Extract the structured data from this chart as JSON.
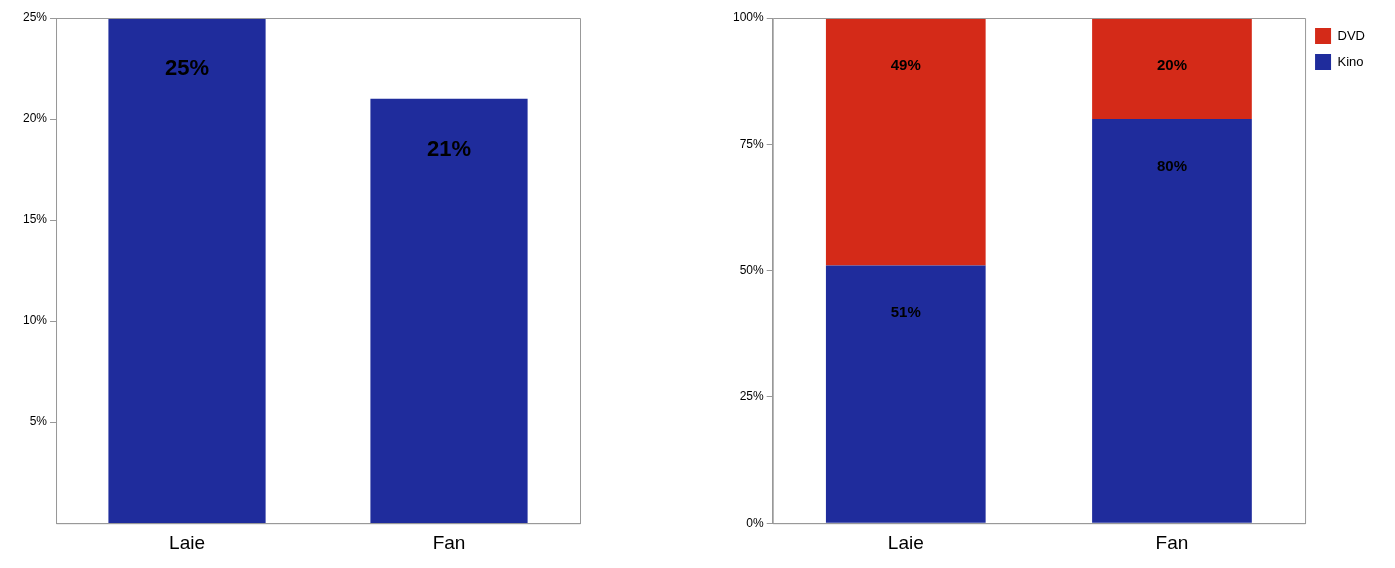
{
  "chart_data": [
    {
      "type": "bar",
      "categories": [
        "Laie",
        "Fan"
      ],
      "values": [
        25,
        21
      ],
      "value_labels": [
        "25%",
        "21%"
      ],
      "color": "#1f2c9c",
      "ylim": [
        0,
        25
      ],
      "yticks": [
        {
          "value": 5,
          "label": "5%"
        },
        {
          "value": 10,
          "label": "10%"
        },
        {
          "value": 15,
          "label": "15%"
        },
        {
          "value": 20,
          "label": "20%"
        },
        {
          "value": 25,
          "label": "25%"
        }
      ]
    },
    {
      "type": "bar",
      "stacked": true,
      "categories": [
        "Laie",
        "Fan"
      ],
      "legend": "top right",
      "series": [
        {
          "name": "Kino",
          "color": "#1f2c9c",
          "values": [
            51,
            80
          ],
          "value_labels": [
            "51%",
            "80%"
          ]
        },
        {
          "name": "DVD",
          "color": "#d42a18",
          "values": [
            49,
            20
          ],
          "value_labels": [
            "49%",
            "20%"
          ]
        }
      ],
      "ylim": [
        0,
        100
      ],
      "yticks": [
        {
          "value": 0,
          "label": "0%"
        },
        {
          "value": 25,
          "label": "25%"
        },
        {
          "value": 50,
          "label": "50%"
        },
        {
          "value": 75,
          "label": "75%"
        },
        {
          "value": 100,
          "label": "100%"
        }
      ]
    }
  ]
}
